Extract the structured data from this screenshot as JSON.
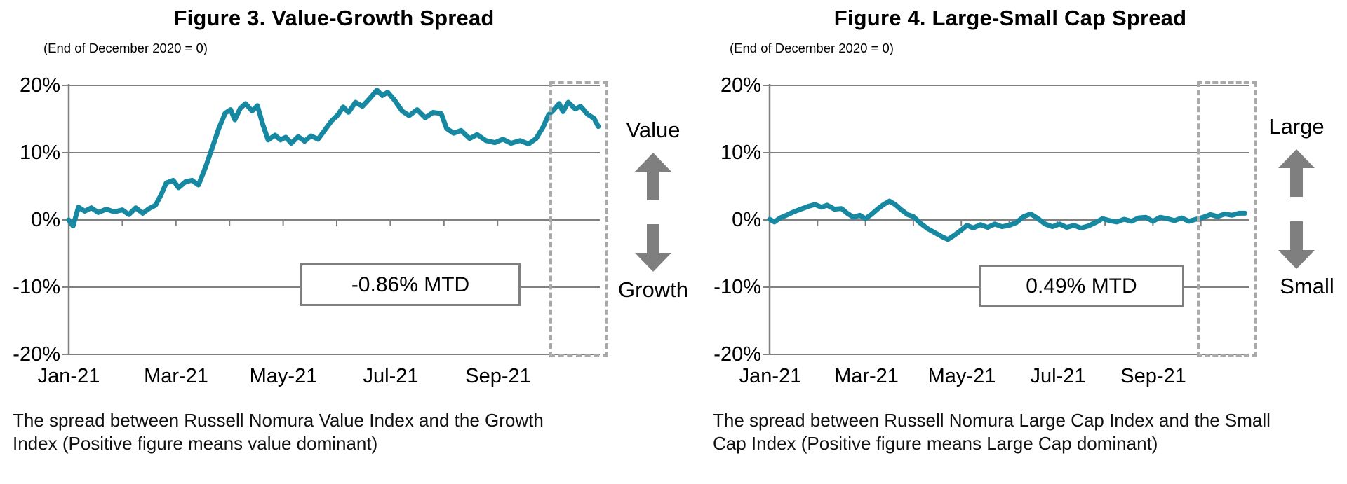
{
  "colors": {
    "line": "#1688a2",
    "grid": "#808080",
    "arrow": "#7f7f7f",
    "dotted_box": "#a9a9a9"
  },
  "figures": [
    {
      "title": "Figure 3. Value-Growth Spread",
      "subtitle": "(End of December 2020 = 0)",
      "mtd_label": "-0.86% MTD",
      "up_label": "Value",
      "down_label": "Growth",
      "caption_line1": "The spread between Russell Nomura Value Index and the Growth",
      "caption_line2": "Index (Positive figure means value dominant)",
      "y_tick_labels": [
        "20%",
        "10%",
        "0%",
        "-10%",
        "-20%"
      ],
      "x_tick_labels": [
        "Jan-21",
        "Mar-21",
        "May-21",
        "Jul-21",
        "Sep-21"
      ]
    },
    {
      "title": "Figure 4. Large-Small Cap Spread",
      "subtitle": "(End of December 2020 = 0)",
      "mtd_label": "0.49% MTD",
      "up_label": "Large",
      "down_label": "Small",
      "caption_line1": "The spread between Russell Nomura Large Cap Index and the Small",
      "caption_line2": "Cap Index (Positive figure means Large Cap dominant)",
      "y_tick_labels": [
        "20%",
        "10%",
        "0%",
        "-10%",
        "-20%"
      ],
      "x_tick_labels": [
        "Jan-21",
        "Mar-21",
        "May-21",
        "Jul-21",
        "Sep-21"
      ]
    }
  ],
  "chart_data": [
    {
      "type": "line",
      "title": "Figure 3. Value-Growth Spread",
      "subtitle": "(End of December 2020 = 0)",
      "ylim": [
        -20,
        20
      ],
      "y_ticks_pct": [
        20,
        10,
        0,
        -10,
        -20
      ],
      "x_tick_labels": [
        "Jan-21",
        "Mar-21",
        "May-21",
        "Jul-21",
        "Sep-21"
      ],
      "x_unit": "months since start of Jan-2021",
      "grid": true,
      "legend": false,
      "annotations": {
        "mtd": "-0.86% MTD",
        "up": "Value",
        "down": "Growth",
        "highlight": "dotted box over final month (Oct-21 MTD)"
      },
      "series": [
        {
          "name": "Value minus Growth spread (%)",
          "x": [
            0,
            0.08,
            0.18,
            0.3,
            0.42,
            0.55,
            0.7,
            0.85,
            1.0,
            1.12,
            1.25,
            1.38,
            1.5,
            1.62,
            1.72,
            1.82,
            1.95,
            2.05,
            2.18,
            2.3,
            2.42,
            2.55,
            2.68,
            2.8,
            2.92,
            3.02,
            3.1,
            3.2,
            3.3,
            3.42,
            3.52,
            3.62,
            3.72,
            3.85,
            3.95,
            4.05,
            4.15,
            4.28,
            4.4,
            4.52,
            4.65,
            4.78,
            4.9,
            5.02,
            5.12,
            5.22,
            5.35,
            5.48,
            5.62,
            5.75,
            5.85,
            5.95,
            6.08,
            6.22,
            6.35,
            6.5,
            6.65,
            6.8,
            6.95,
            7.05,
            7.18,
            7.32,
            7.48,
            7.62,
            7.78,
            7.95,
            8.1,
            8.25,
            8.42,
            8.58,
            8.72,
            8.85,
            8.95,
            9.05,
            9.15,
            9.22,
            9.32,
            9.45,
            9.55,
            9.68,
            9.8,
            9.88
          ],
          "values": [
            0,
            -0.9,
            1.9,
            1.3,
            1.8,
            1.1,
            1.6,
            1.2,
            1.5,
            0.8,
            1.8,
            1.0,
            1.7,
            2.2,
            3.7,
            5.5,
            5.9,
            4.8,
            5.7,
            5.9,
            5.2,
            7.8,
            10.8,
            13.6,
            15.9,
            16.4,
            14.9,
            16.6,
            17.3,
            16.2,
            17.0,
            14.2,
            11.9,
            12.6,
            11.9,
            12.3,
            11.4,
            12.4,
            11.7,
            12.5,
            12.0,
            13.4,
            14.7,
            15.6,
            16.8,
            16.0,
            17.5,
            16.9,
            18.1,
            19.3,
            18.5,
            19.0,
            17.8,
            16.2,
            15.5,
            16.4,
            15.2,
            16.0,
            15.8,
            13.6,
            12.9,
            13.3,
            12.1,
            12.7,
            11.8,
            11.5,
            12.0,
            11.4,
            11.8,
            11.3,
            12.1,
            13.8,
            15.6,
            16.4,
            17.3,
            16.1,
            17.5,
            16.5,
            16.9,
            15.7,
            15.1,
            13.9
          ]
        }
      ]
    },
    {
      "type": "line",
      "title": "Figure 4. Large-Small Cap Spread",
      "subtitle": "(End of December 2020 = 0)",
      "ylim": [
        -20,
        20
      ],
      "y_ticks_pct": [
        20,
        10,
        0,
        -10,
        -20
      ],
      "x_tick_labels": [
        "Jan-21",
        "Mar-21",
        "May-21",
        "Jul-21",
        "Sep-21"
      ],
      "x_unit": "months since start of Jan-2021",
      "grid": true,
      "legend": false,
      "annotations": {
        "mtd": "0.49% MTD",
        "up": "Large",
        "down": "Small",
        "highlight": "dotted box over final month (Oct-21 MTD)"
      },
      "series": [
        {
          "name": "Large Cap minus Small Cap spread (%)",
          "x": [
            0,
            0.1,
            0.22,
            0.35,
            0.5,
            0.65,
            0.8,
            0.95,
            1.08,
            1.2,
            1.35,
            1.5,
            1.62,
            1.75,
            1.88,
            2.0,
            2.12,
            2.25,
            2.38,
            2.5,
            2.62,
            2.75,
            2.88,
            3.0,
            3.15,
            3.3,
            3.45,
            3.6,
            3.72,
            3.85,
            4.0,
            4.12,
            4.25,
            4.4,
            4.55,
            4.7,
            4.85,
            5.0,
            5.15,
            5.3,
            5.45,
            5.6,
            5.75,
            5.9,
            6.05,
            6.2,
            6.35,
            6.5,
            6.65,
            6.8,
            6.95,
            7.1,
            7.25,
            7.4,
            7.55,
            7.7,
            7.85,
            8.0,
            8.15,
            8.3,
            8.45,
            8.6,
            8.75,
            8.9,
            9.05,
            9.2,
            9.35,
            9.5,
            9.65,
            9.8,
            9.92
          ],
          "values": [
            0.1,
            -0.3,
            0.3,
            0.7,
            1.2,
            1.6,
            2.0,
            2.3,
            1.9,
            2.2,
            1.6,
            1.7,
            1.0,
            0.4,
            0.7,
            0.2,
            0.8,
            1.6,
            2.3,
            2.8,
            2.3,
            1.5,
            0.8,
            0.5,
            -0.5,
            -1.3,
            -1.9,
            -2.5,
            -2.9,
            -2.3,
            -1.5,
            -0.8,
            -1.2,
            -0.7,
            -1.1,
            -0.6,
            -1.0,
            -0.8,
            -0.4,
            0.5,
            0.9,
            0.2,
            -0.6,
            -1.0,
            -0.6,
            -1.1,
            -0.8,
            -1.2,
            -0.9,
            -0.4,
            0.2,
            -0.1,
            -0.3,
            0.1,
            -0.2,
            0.3,
            0.4,
            -0.2,
            0.4,
            0.2,
            -0.1,
            0.3,
            -0.2,
            0.1,
            0.4,
            0.8,
            0.5,
            0.9,
            0.7,
            1.0,
            1.0
          ]
        }
      ]
    }
  ]
}
